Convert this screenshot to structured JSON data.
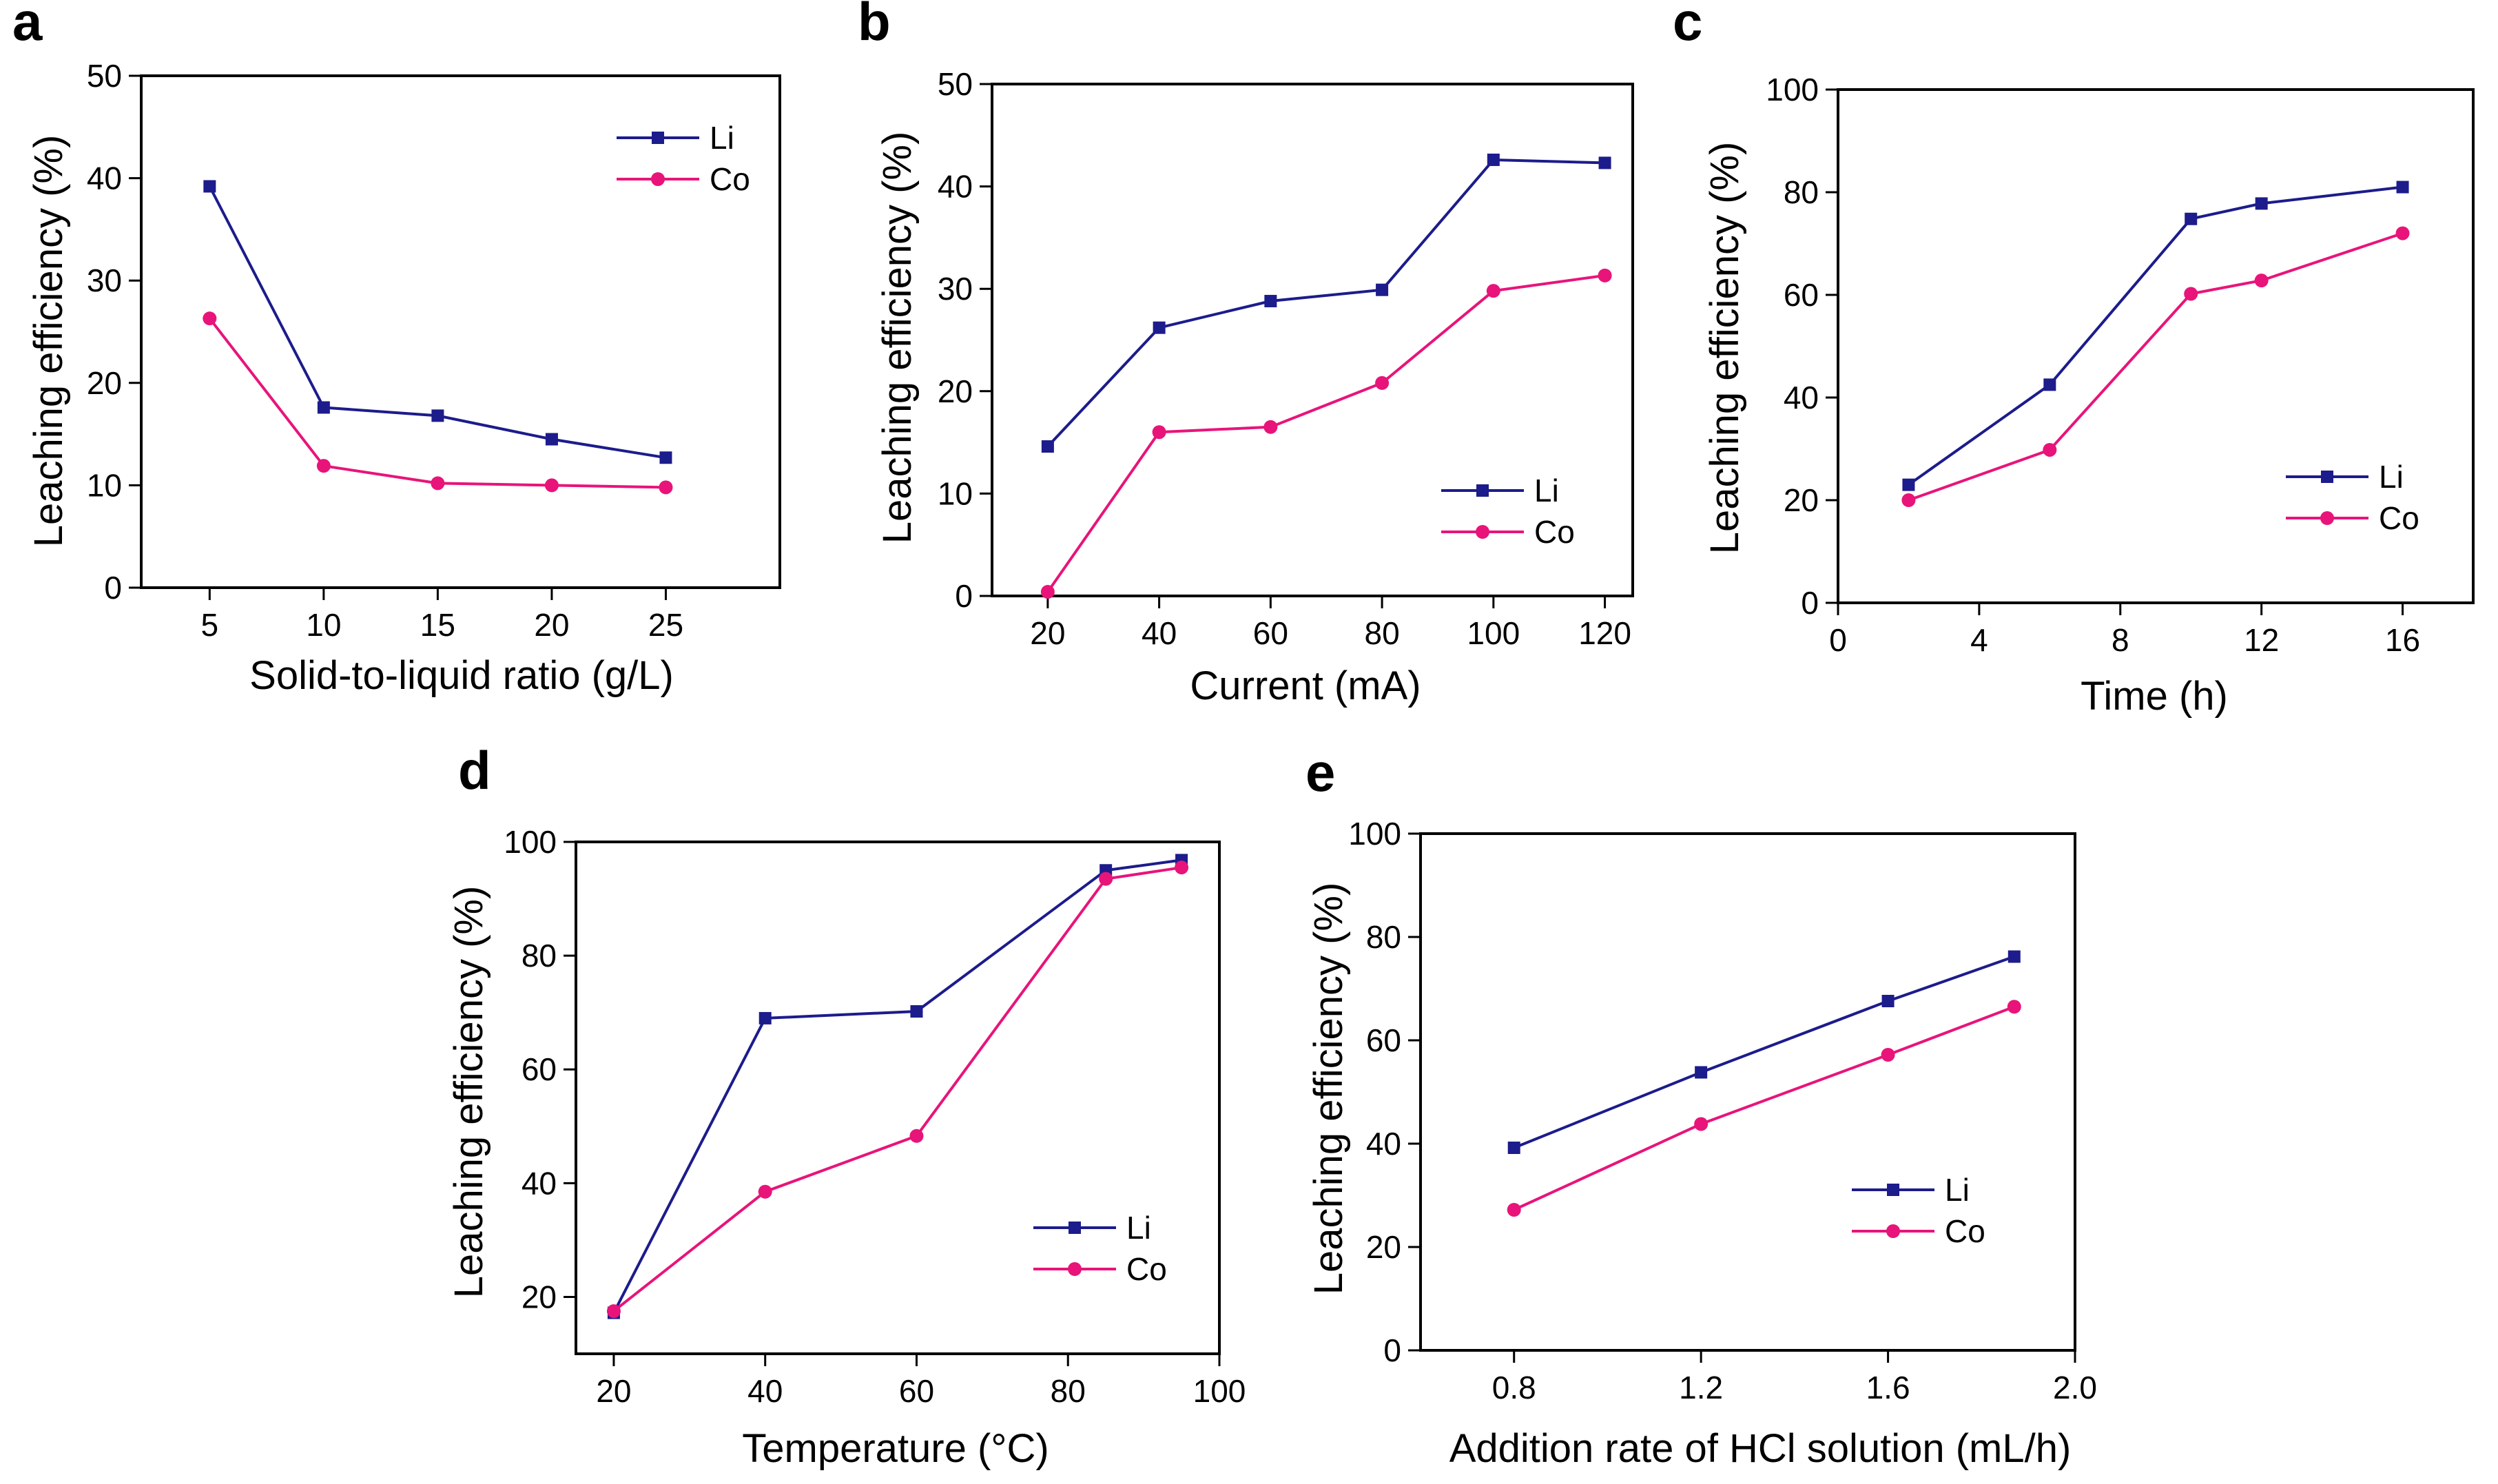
{
  "colors": {
    "li": "#1c1c8c",
    "co": "#e8147a",
    "axis": "#000000"
  },
  "chart_data": [
    {
      "panel": "a",
      "type": "line",
      "xlabel": "Solid-to-liquid ratio (g/L)",
      "ylabel": "Leaching efficiency (%)",
      "xlim": [
        2,
        30
      ],
      "ylim": [
        0,
        50
      ],
      "xticks": [
        5,
        10,
        15,
        20,
        25
      ],
      "xtick_labels": [
        "5",
        "10",
        "15",
        "20",
        "25"
      ],
      "yticks": [
        0,
        10,
        20,
        30,
        40,
        50
      ],
      "ytick_labels": [
        "0",
        "10",
        "20",
        "30",
        "40",
        "50"
      ],
      "legend_position": "top-right",
      "series": [
        {
          "name": "Li",
          "marker": "square",
          "x": [
            5,
            10,
            15,
            20,
            25
          ],
          "values": [
            39.2,
            17.6,
            16.8,
            14.5,
            12.7
          ]
        },
        {
          "name": "Co",
          "marker": "circle",
          "x": [
            5,
            10,
            15,
            20,
            25
          ],
          "values": [
            26.3,
            11.9,
            10.2,
            10.0,
            9.8
          ]
        }
      ]
    },
    {
      "panel": "b",
      "type": "line",
      "xlabel": "Current (mA)",
      "ylabel": "Leaching efficiency (%)",
      "xlim": [
        10,
        125
      ],
      "ylim": [
        0,
        50
      ],
      "xticks": [
        20,
        40,
        60,
        80,
        100,
        120
      ],
      "xtick_labels": [
        "20",
        "40",
        "60",
        "80",
        "100",
        "120"
      ],
      "yticks": [
        0,
        10,
        20,
        30,
        40,
        50
      ],
      "ytick_labels": [
        "0",
        "10",
        "20",
        "30",
        "40",
        "50"
      ],
      "legend_position": "bottom-right",
      "series": [
        {
          "name": "Li",
          "marker": "square",
          "x": [
            20,
            40,
            60,
            80,
            100,
            120
          ],
          "values": [
            14.6,
            26.2,
            28.8,
            29.9,
            42.6,
            42.3
          ]
        },
        {
          "name": "Co",
          "marker": "circle",
          "x": [
            20,
            40,
            60,
            80,
            100,
            120
          ],
          "values": [
            0.4,
            16.0,
            16.5,
            20.8,
            29.8,
            31.3
          ]
        }
      ]
    },
    {
      "panel": "c",
      "type": "line",
      "xlabel": "Time (h)",
      "ylabel": "Leaching efficiency (%)",
      "xlim": [
        0,
        18
      ],
      "ylim": [
        0,
        100
      ],
      "xticks": [
        0,
        4,
        8,
        12,
        16
      ],
      "xtick_labels": [
        "0",
        "4",
        "8",
        "12",
        "16"
      ],
      "yticks": [
        0,
        20,
        40,
        60,
        80,
        100
      ],
      "ytick_labels": [
        "0",
        "20",
        "40",
        "60",
        "80",
        "100"
      ],
      "legend_position": "bottom-right",
      "series": [
        {
          "name": "Li",
          "marker": "square",
          "x": [
            2,
            6,
            10,
            12,
            16
          ],
          "values": [
            23.0,
            42.5,
            74.8,
            77.8,
            81.0
          ]
        },
        {
          "name": "Co",
          "marker": "circle",
          "x": [
            2,
            6,
            10,
            12,
            16
          ],
          "values": [
            20.0,
            29.8,
            60.2,
            62.8,
            72.0
          ]
        }
      ]
    },
    {
      "panel": "d",
      "type": "line",
      "xlabel": "Temperature (°C)",
      "ylabel": "Leaching efficiency (%)",
      "xlim": [
        15,
        100
      ],
      "ylim": [
        10,
        100
      ],
      "xticks": [
        20,
        40,
        60,
        80,
        100
      ],
      "xtick_labels": [
        "20",
        "40",
        "60",
        "80",
        "100"
      ],
      "yticks": [
        20,
        40,
        60,
        80,
        100
      ],
      "ytick_labels": [
        "20",
        "40",
        "60",
        "80",
        "100"
      ],
      "legend_position": "bottom-right",
      "series": [
        {
          "name": "Li",
          "marker": "square",
          "x": [
            20,
            40,
            60,
            85,
            95
          ],
          "values": [
            17.2,
            69.0,
            70.2,
            95.0,
            96.8
          ]
        },
        {
          "name": "Co",
          "marker": "circle",
          "x": [
            20,
            40,
            60,
            85,
            95
          ],
          "values": [
            17.5,
            38.5,
            48.3,
            93.5,
            95.5
          ]
        }
      ]
    },
    {
      "panel": "e",
      "type": "line",
      "xlabel": "Addition rate of HCl solution (mL/h)",
      "ylabel": "Leaching efficiency (%)",
      "xlim": [
        0.6,
        2.0
      ],
      "ylim": [
        0,
        100
      ],
      "xticks": [
        0.8,
        1.2,
        1.6,
        2.0
      ],
      "xtick_labels": [
        "0.8",
        "1.2",
        "1.6",
        "2.0"
      ],
      "yticks": [
        0,
        20,
        40,
        60,
        80,
        100
      ],
      "ytick_labels": [
        "0",
        "20",
        "40",
        "60",
        "80",
        "100"
      ],
      "legend_position": "bottom-right",
      "series": [
        {
          "name": "Li",
          "marker": "square",
          "x": [
            0.8,
            1.2,
            1.6,
            1.87
          ],
          "values": [
            39.2,
            53.8,
            67.6,
            76.2
          ]
        },
        {
          "name": "Co",
          "marker": "circle",
          "x": [
            0.8,
            1.2,
            1.6,
            1.87
          ],
          "values": [
            27.2,
            43.8,
            57.2,
            66.5
          ]
        }
      ]
    }
  ]
}
